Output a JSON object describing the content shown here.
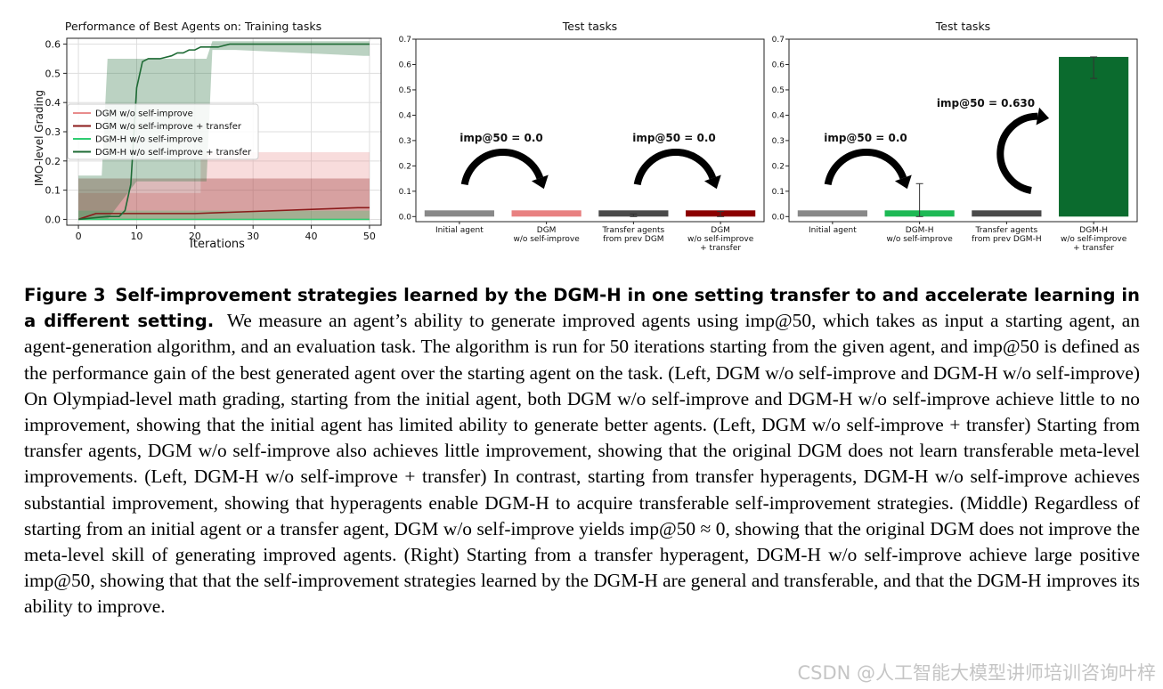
{
  "chart_data": [
    {
      "type": "line",
      "title": "Performance of Best Agents on: Training tasks",
      "xlabel": "Iterations",
      "ylabel": "IMO-level Grading",
      "xlim": [
        -2,
        52
      ],
      "ylim": [
        -0.02,
        0.62
      ],
      "xticks": [
        "0",
        "10",
        "20",
        "30",
        "40",
        "50"
      ],
      "yticks": [
        "0.0",
        "0.1",
        "0.2",
        "0.3",
        "0.4",
        "0.5",
        "0.6"
      ],
      "grid": true,
      "legend_position": "middle-left",
      "series": [
        {
          "name": "DGM w/o self-improve",
          "color": "#e88c8c",
          "x": [
            0,
            50
          ],
          "y": [
            0.0,
            0.0
          ],
          "band_x": [
            0,
            21,
            21,
            50
          ],
          "band_low": [
            0.0,
            0.0,
            0.0,
            0.0
          ],
          "band_high": [
            0.09,
            0.09,
            0.23,
            0.23
          ]
        },
        {
          "name": "DGM w/o self-improve + transfer",
          "color": "#8b1a1a",
          "x": [
            0,
            3,
            20,
            48,
            50
          ],
          "y": [
            0.0,
            0.02,
            0.02,
            0.04,
            0.04
          ],
          "band_x": [
            0,
            50
          ],
          "band_low": [
            0.0,
            0.0
          ],
          "band_high": [
            0.14,
            0.14
          ]
        },
        {
          "name": "DGM-H w/o self-improve",
          "color": "#2ecc71",
          "x": [
            0,
            50
          ],
          "y": [
            0.0,
            0.0
          ],
          "band_x": [
            0,
            50
          ],
          "band_low": [
            0.0,
            0.0
          ],
          "band_high": [
            0.03,
            0.03
          ]
        },
        {
          "name": "DGM-H w/o self-improve + transfer",
          "color": "#1e6b35",
          "x": [
            0,
            5,
            7,
            8,
            9,
            10,
            11,
            12,
            14,
            16,
            17,
            18,
            19,
            20,
            21,
            24,
            26,
            50
          ],
          "y": [
            0.0,
            0.01,
            0.01,
            0.03,
            0.12,
            0.45,
            0.54,
            0.55,
            0.55,
            0.56,
            0.57,
            0.57,
            0.58,
            0.58,
            0.59,
            0.59,
            0.6,
            0.6
          ],
          "band_x": [
            0,
            4,
            5,
            10,
            12,
            22,
            23,
            27,
            49,
            50
          ],
          "band_low": [
            0.0,
            0.0,
            0.0,
            0.13,
            0.13,
            0.13,
            0.58,
            0.58,
            0.56,
            0.56
          ],
          "band_high": [
            0.15,
            0.15,
            0.55,
            0.55,
            0.55,
            0.55,
            0.61,
            0.61,
            0.61,
            0.61
          ]
        }
      ]
    },
    {
      "type": "bar",
      "title": "Test tasks",
      "ylim": [
        -0.02,
        0.7
      ],
      "yticks": [
        "0.0",
        "0.1",
        "0.2",
        "0.3",
        "0.4",
        "0.5",
        "0.6",
        "0.7"
      ],
      "categories": [
        [
          "Initial agent"
        ],
        [
          "DGM",
          "w/o self-improve"
        ],
        [
          "Transfer agents",
          "from prev DGM"
        ],
        [
          "DGM",
          "w/o self-improve",
          "+ transfer"
        ]
      ],
      "values": [
        0.0,
        0.0,
        0.0,
        0.0
      ],
      "err_high": [
        0.0,
        0.0,
        0.01,
        0.02
      ],
      "colors": [
        "#888888",
        "#e88080",
        "#4a4a4a",
        "#8b0000"
      ],
      "annotations": [
        "imp@50 = 0.0",
        "imp@50 = 0.0"
      ]
    },
    {
      "type": "bar",
      "title": "Test tasks",
      "ylim": [
        -0.02,
        0.7
      ],
      "yticks": [
        "0.0",
        "0.1",
        "0.2",
        "0.3",
        "0.4",
        "0.5",
        "0.6",
        "0.7"
      ],
      "categories": [
        [
          "Initial agent"
        ],
        [
          "DGM-H",
          "w/o self-improve"
        ],
        [
          "Transfer agents",
          "from prev DGM-H"
        ],
        [
          "DGM-H",
          "w/o self-improve",
          "+ transfer"
        ]
      ],
      "values": [
        0.0,
        0.0,
        0.0,
        0.63
      ],
      "err_low": [
        0.0,
        0.0,
        0.0,
        0.545
      ],
      "err_high": [
        0.0,
        0.13,
        0.0,
        0.63
      ],
      "colors": [
        "#888888",
        "#1db954",
        "#4a4a4a",
        "#0b6b2e"
      ],
      "annotations": [
        "imp@50 = 0.0",
        "imp@50 = 0.630"
      ]
    }
  ],
  "caption": {
    "label": "Figure 3",
    "title": "Self-improvement strategies learned by the DGM-H in one setting transfer to and accelerate learning in a different setting.",
    "body": "We measure an agent’s ability to generate improved agents using imp@50, which takes as input a starting agent, an agent-generation algorithm, and an evaluation task. The algorithm is run for 50 iterations starting from the given agent, and imp@50 is defined as the performance gain of the best generated agent over the starting agent on the task. (Left, DGM w/o self-improve and DGM-H w/o self-improve) On Olympiad-level math grading, starting from the initial agent, both DGM w/o self-improve and DGM-H w/o self-improve achieve little to no improvement, showing that the initial agent has limited ability to generate better agents. (Left, DGM w/o self-improve + transfer) Starting from transfer agents, DGM w/o self-improve also achieves little improvement, showing that the original DGM does not learn transferable meta-level improvements. (Left, DGM-H w/o self-improve + transfer) In contrast, starting from transfer hyperagents, DGM-H w/o self-improve achieves substantial improvement, showing that hyperagents enable DGM-H to acquire transferable self-improvement strategies. (Middle) Regardless of starting from an initial agent or a transfer agent, DGM w/o self-improve yields imp@50 ≈ 0, showing that the original DGM does not improve the meta-level skill of generating improved agents. (Right) Starting from a transfer hyperagent, DGM-H w/o self-improve achieve large positive imp@50, showing that that the self-improvement strategies learned by the DGM-H are general and transferable, and that the DGM-H improves its ability to improve."
  },
  "watermark": "CSDN @人工智能大模型讲师培训咨询叶梓"
}
